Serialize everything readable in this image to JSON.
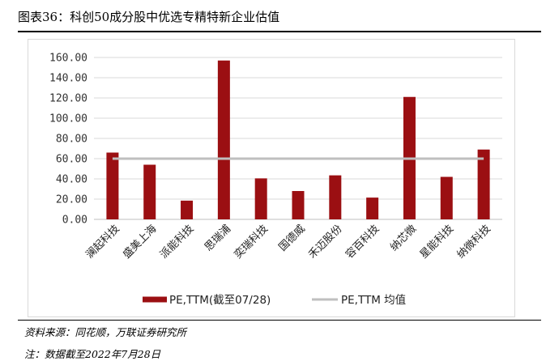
{
  "header": {
    "title": "图表36：科创50成分股中优选专精特新企业估值"
  },
  "footer": {
    "source": "资料来源：同花顺，万联证券研究所",
    "note": "注：数据截至2022年7月28日"
  },
  "chart_data": {
    "type": "bar",
    "categories": [
      "澜起科技",
      "盛美上海",
      "派能科技",
      "思瑞浦",
      "奕瑞科技",
      "国德威",
      "禾迈股份",
      "容百科技",
      "纳芯微",
      "星能科技",
      "纳微科技"
    ],
    "series": [
      {
        "name": "PE,TTM(截至07/28)",
        "type": "bar",
        "color": "#9b0f12",
        "values": [
          66,
          54,
          18.5,
          157,
          40.5,
          28,
          43.5,
          21.5,
          121,
          42,
          69
        ]
      },
      {
        "name": "PE,TTM 均值",
        "type": "line",
        "color": "#bfbfbf",
        "values": [
          60,
          60,
          60,
          60,
          60,
          60,
          60,
          60,
          60,
          60,
          60
        ]
      }
    ],
    "yticks": [
      "0.00",
      "20.00",
      "40.00",
      "60.00",
      "80.00",
      "100.00",
      "120.00",
      "140.00",
      "160.00"
    ],
    "ylim": [
      0,
      160
    ],
    "grid": true,
    "legend_position": "bottom"
  }
}
